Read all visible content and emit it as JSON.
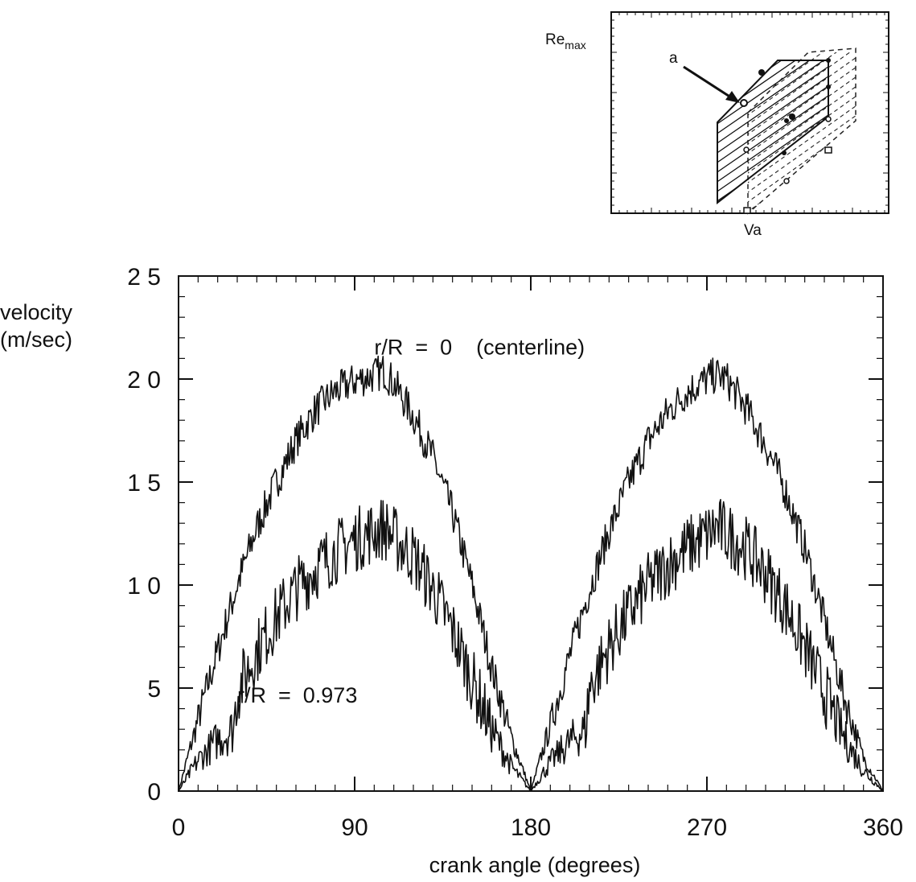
{
  "chart_data": [
    {
      "type": "line",
      "xlabel": "crank angle (degrees)",
      "ylabel_line1": "velocity",
      "ylabel_line2": "(m/sec)",
      "xlim": [
        0,
        360
      ],
      "ylim": [
        0,
        25
      ],
      "x_ticks": [
        0,
        90,
        180,
        270,
        360
      ],
      "x_tick_labels": [
        "0",
        "90",
        "180",
        "270",
        "360"
      ],
      "y_ticks": [
        0,
        5,
        10,
        15,
        20,
        25
      ],
      "y_tick_labels": [
        "0",
        "5",
        "1 0",
        "1 5",
        "2 0",
        "2 5"
      ],
      "grid": false,
      "legend": "none",
      "series": [
        {
          "name": "r/R  =  0    (centerline)",
          "x": [
            0,
            10,
            20,
            30,
            40,
            50,
            60,
            70,
            80,
            90,
            100,
            105,
            110,
            120,
            130,
            140,
            150,
            160,
            170,
            180,
            190,
            200,
            210,
            220,
            230,
            240,
            250,
            260,
            270,
            275,
            280,
            290,
            300,
            310,
            320,
            330,
            340,
            350,
            360
          ],
          "y": [
            0,
            3.5,
            6.8,
            10.0,
            12.8,
            15.0,
            17.0,
            18.5,
            19.4,
            19.9,
            20.2,
            20.4,
            19.8,
            18.2,
            16.2,
            13.5,
            10.0,
            6.0,
            2.6,
            0,
            3.2,
            6.6,
            9.8,
            12.6,
            15.0,
            17.0,
            18.4,
            19.4,
            20.0,
            20.2,
            20.0,
            18.6,
            16.8,
            14.6,
            11.8,
            8.3,
            4.6,
            1.6,
            0
          ]
        },
        {
          "name": "r/R  =  0.973",
          "x": [
            0,
            10,
            20,
            28,
            30,
            40,
            50,
            60,
            70,
            80,
            90,
            100,
            105,
            110,
            120,
            130,
            140,
            150,
            160,
            170,
            180,
            190,
            200,
            208,
            210,
            220,
            230,
            240,
            250,
            260,
            270,
            275,
            280,
            290,
            300,
            310,
            320,
            330,
            340,
            350,
            360
          ],
          "y": [
            0,
            1.5,
            2.5,
            3.0,
            4.8,
            6.8,
            8.4,
            9.8,
            10.8,
            11.6,
            12.2,
            12.6,
            12.8,
            12.3,
            11.4,
            9.8,
            7.8,
            5.4,
            3.0,
            1.2,
            0,
            1.4,
            2.4,
            3.0,
            5.0,
            7.0,
            8.6,
            10.0,
            11.0,
            11.8,
            12.4,
            12.8,
            12.5,
            11.8,
            10.6,
            9.0,
            7.0,
            4.8,
            2.6,
            1.0,
            0
          ]
        }
      ],
      "annotations": [
        {
          "text": "r/R  =  0    (centerline)",
          "x": 100,
          "y": 21.2
        },
        {
          "text": "r/R  =  0.973",
          "x": 30,
          "y": 4.3
        }
      ]
    },
    {
      "type": "diagram",
      "xlabel": "Va",
      "ylabel_main": "Re",
      "ylabel_sub": "max",
      "annotation": "a"
    }
  ]
}
